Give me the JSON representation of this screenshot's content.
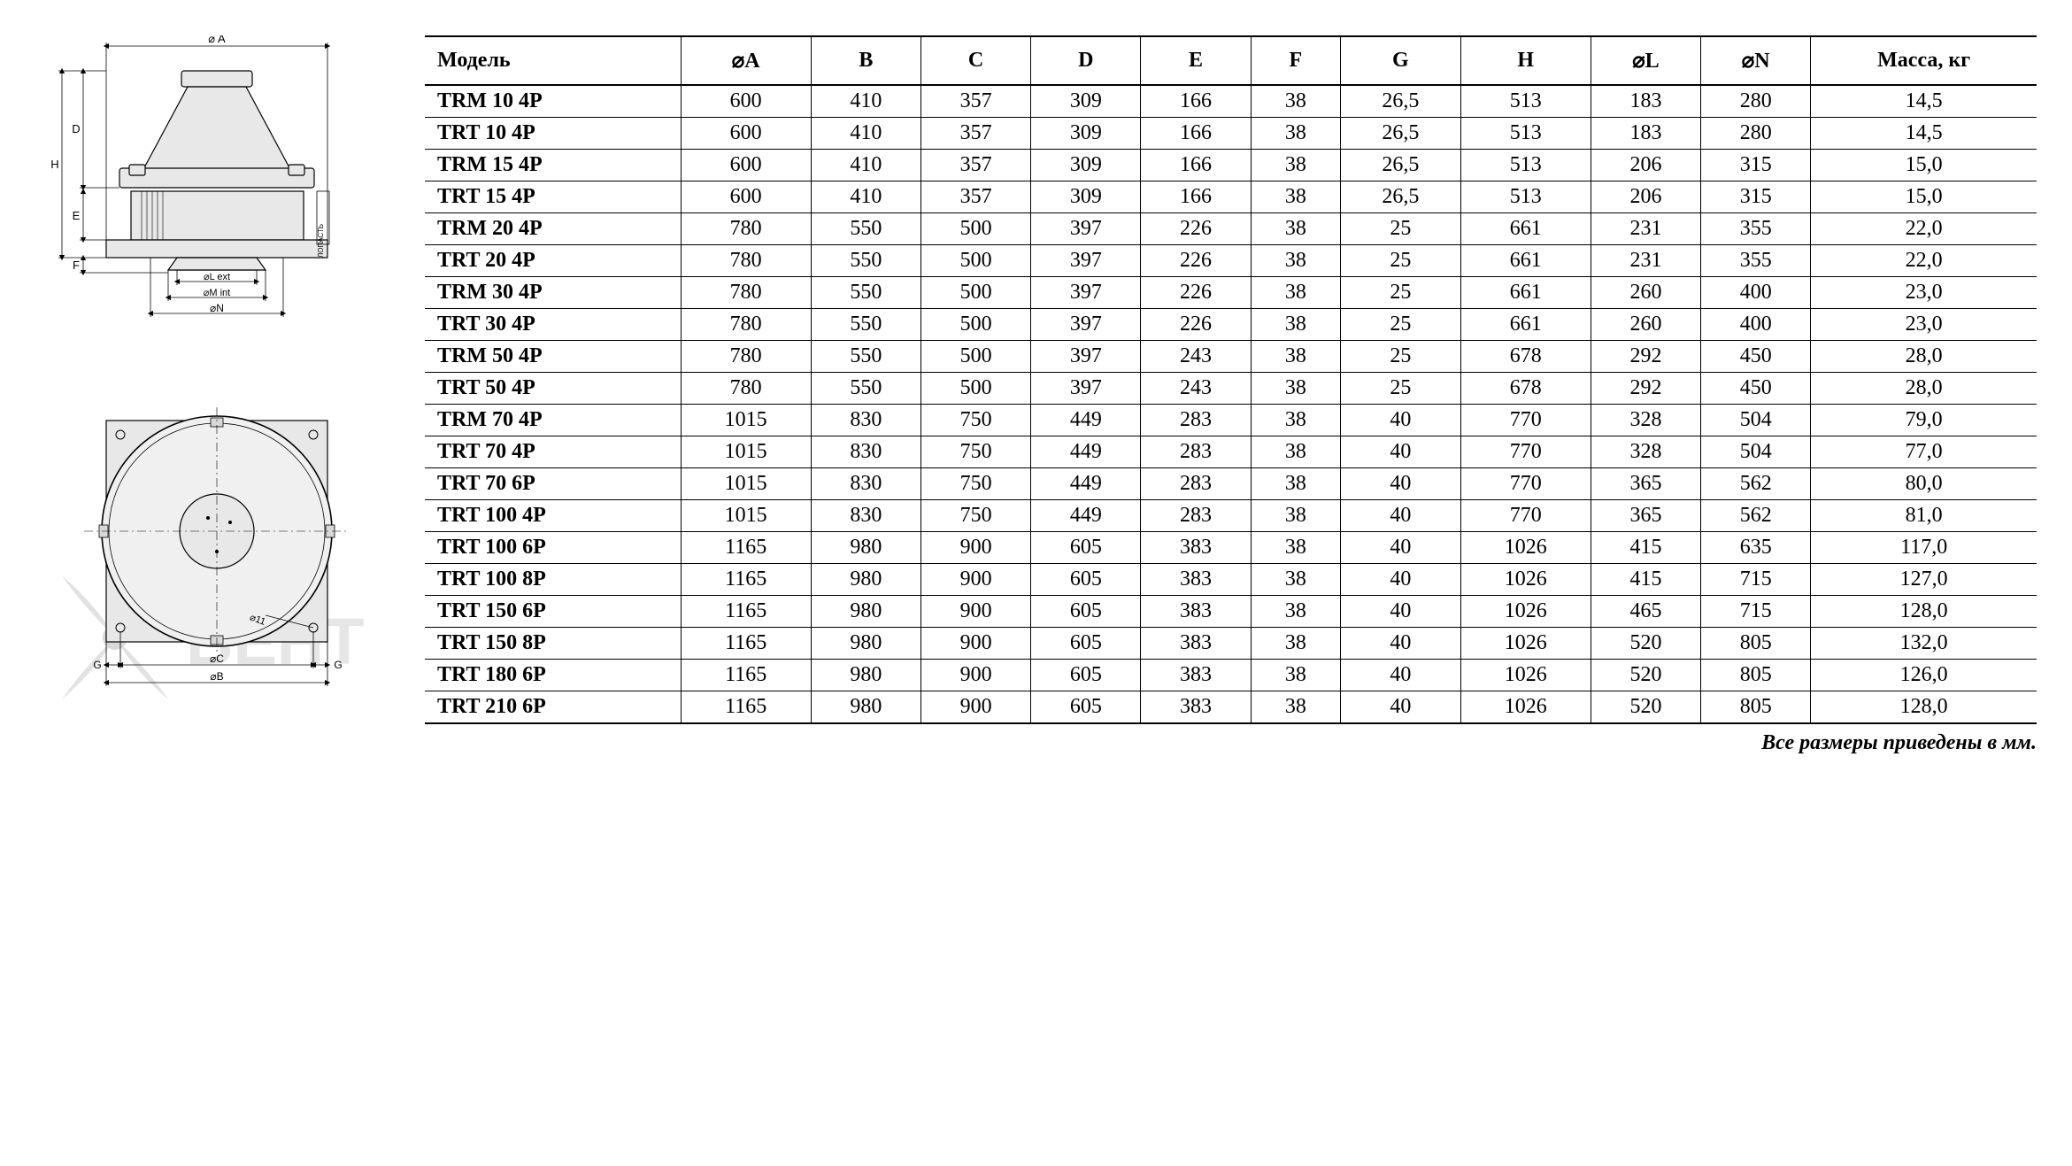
{
  "table": {
    "columns": [
      "Модель",
      "⌀A",
      "B",
      "C",
      "D",
      "E",
      "F",
      "G",
      "H",
      "⌀L",
      "⌀N",
      "Масса, кг"
    ],
    "col_align": [
      "left",
      "center",
      "center",
      "center",
      "center",
      "center",
      "center",
      "center",
      "center",
      "center",
      "center",
      "center"
    ],
    "header_fontsize": 24,
    "cell_fontsize": 24,
    "border_color": "#000000",
    "header_border_width": 2,
    "row_border_width": 1,
    "rows": [
      [
        "TRM 10 4P",
        "600",
        "410",
        "357",
        "309",
        "166",
        "38",
        "26,5",
        "513",
        "183",
        "280",
        "14,5"
      ],
      [
        "TRT 10 4P",
        "600",
        "410",
        "357",
        "309",
        "166",
        "38",
        "26,5",
        "513",
        "183",
        "280",
        "14,5"
      ],
      [
        "TRM 15 4P",
        "600",
        "410",
        "357",
        "309",
        "166",
        "38",
        "26,5",
        "513",
        "206",
        "315",
        "15,0"
      ],
      [
        "TRT 15 4P",
        "600",
        "410",
        "357",
        "309",
        "166",
        "38",
        "26,5",
        "513",
        "206",
        "315",
        "15,0"
      ],
      [
        "TRM 20 4P",
        "780",
        "550",
        "500",
        "397",
        "226",
        "38",
        "25",
        "661",
        "231",
        "355",
        "22,0"
      ],
      [
        "TRT 20 4P",
        "780",
        "550",
        "500",
        "397",
        "226",
        "38",
        "25",
        "661",
        "231",
        "355",
        "22,0"
      ],
      [
        "TRM 30 4P",
        "780",
        "550",
        "500",
        "397",
        "226",
        "38",
        "25",
        "661",
        "260",
        "400",
        "23,0"
      ],
      [
        "TRT 30  4P",
        "780",
        "550",
        "500",
        "397",
        "226",
        "38",
        "25",
        "661",
        "260",
        "400",
        "23,0"
      ],
      [
        "TRM 50 4P",
        "780",
        "550",
        "500",
        "397",
        "243",
        "38",
        "25",
        "678",
        "292",
        "450",
        "28,0"
      ],
      [
        "TRT 50 4P",
        "780",
        "550",
        "500",
        "397",
        "243",
        "38",
        "25",
        "678",
        "292",
        "450",
        "28,0"
      ],
      [
        "TRM 70  4P",
        "1015",
        "830",
        "750",
        "449",
        "283",
        "38",
        "40",
        "770",
        "328",
        "504",
        "79,0"
      ],
      [
        "TRT 70 4P",
        "1015",
        "830",
        "750",
        "449",
        "283",
        "38",
        "40",
        "770",
        "328",
        "504",
        "77,0"
      ],
      [
        "TRT 70  6P",
        "1015",
        "830",
        "750",
        "449",
        "283",
        "38",
        "40",
        "770",
        "365",
        "562",
        "80,0"
      ],
      [
        "TRT 100  4P",
        "1015",
        "830",
        "750",
        "449",
        "283",
        "38",
        "40",
        "770",
        "365",
        "562",
        "81,0"
      ],
      [
        "TRT 100 6P",
        "1165",
        "980",
        "900",
        "605",
        "383",
        "38",
        "40",
        "1026",
        "415",
        "635",
        "117,0"
      ],
      [
        "TRT 100  8P",
        "1165",
        "980",
        "900",
        "605",
        "383",
        "38",
        "40",
        "1026",
        "415",
        "715",
        "127,0"
      ],
      [
        "TRT 150  6P",
        "1165",
        "980",
        "900",
        "605",
        "383",
        "38",
        "40",
        "1026",
        "465",
        "715",
        "128,0"
      ],
      [
        "TRT 150 8P",
        "1165",
        "980",
        "900",
        "605",
        "383",
        "38",
        "40",
        "1026",
        "520",
        "805",
        "132,0"
      ],
      [
        "TRT 180 6P",
        "1165",
        "980",
        "900",
        "605",
        "383",
        "38",
        "40",
        "1026",
        "520",
        "805",
        "126,0"
      ],
      [
        "TRT 210 6P",
        "1165",
        "980",
        "900",
        "605",
        "383",
        "38",
        "40",
        "1026",
        "520",
        "805",
        "128,0"
      ]
    ]
  },
  "footnote": "Все размеры приведены в мм.",
  "diagrams": {
    "side_view": {
      "labels": {
        "A": "⌀ A",
        "D": "D",
        "H": "H",
        "E": "E",
        "F": "F",
        "Lext": "⌀L ext",
        "Mint": "⌀M int",
        "N": "⌀N",
        "blade": "ЛОПАСТЬ"
      },
      "stroke_color": "#000000",
      "fill_color": "#e8e8e8",
      "stroke_width": 1.2,
      "dim_stroke_width": 0.8,
      "font_size": 12,
      "font_family": "Arial"
    },
    "top_view": {
      "labels": {
        "G": "G",
        "C": "⌀C",
        "B": "⌀B",
        "hole": "⌀11"
      },
      "stroke_color": "#000000",
      "fill_color": "#e8e8e8",
      "stroke_width": 1.2,
      "dim_stroke_width": 0.8,
      "font_size": 12,
      "font_family": "Arial"
    }
  },
  "watermark": {
    "text": "ВЕНТ",
    "color": "#e6e6e6",
    "blade_color": "#dcdcdc",
    "font_size": 74
  }
}
